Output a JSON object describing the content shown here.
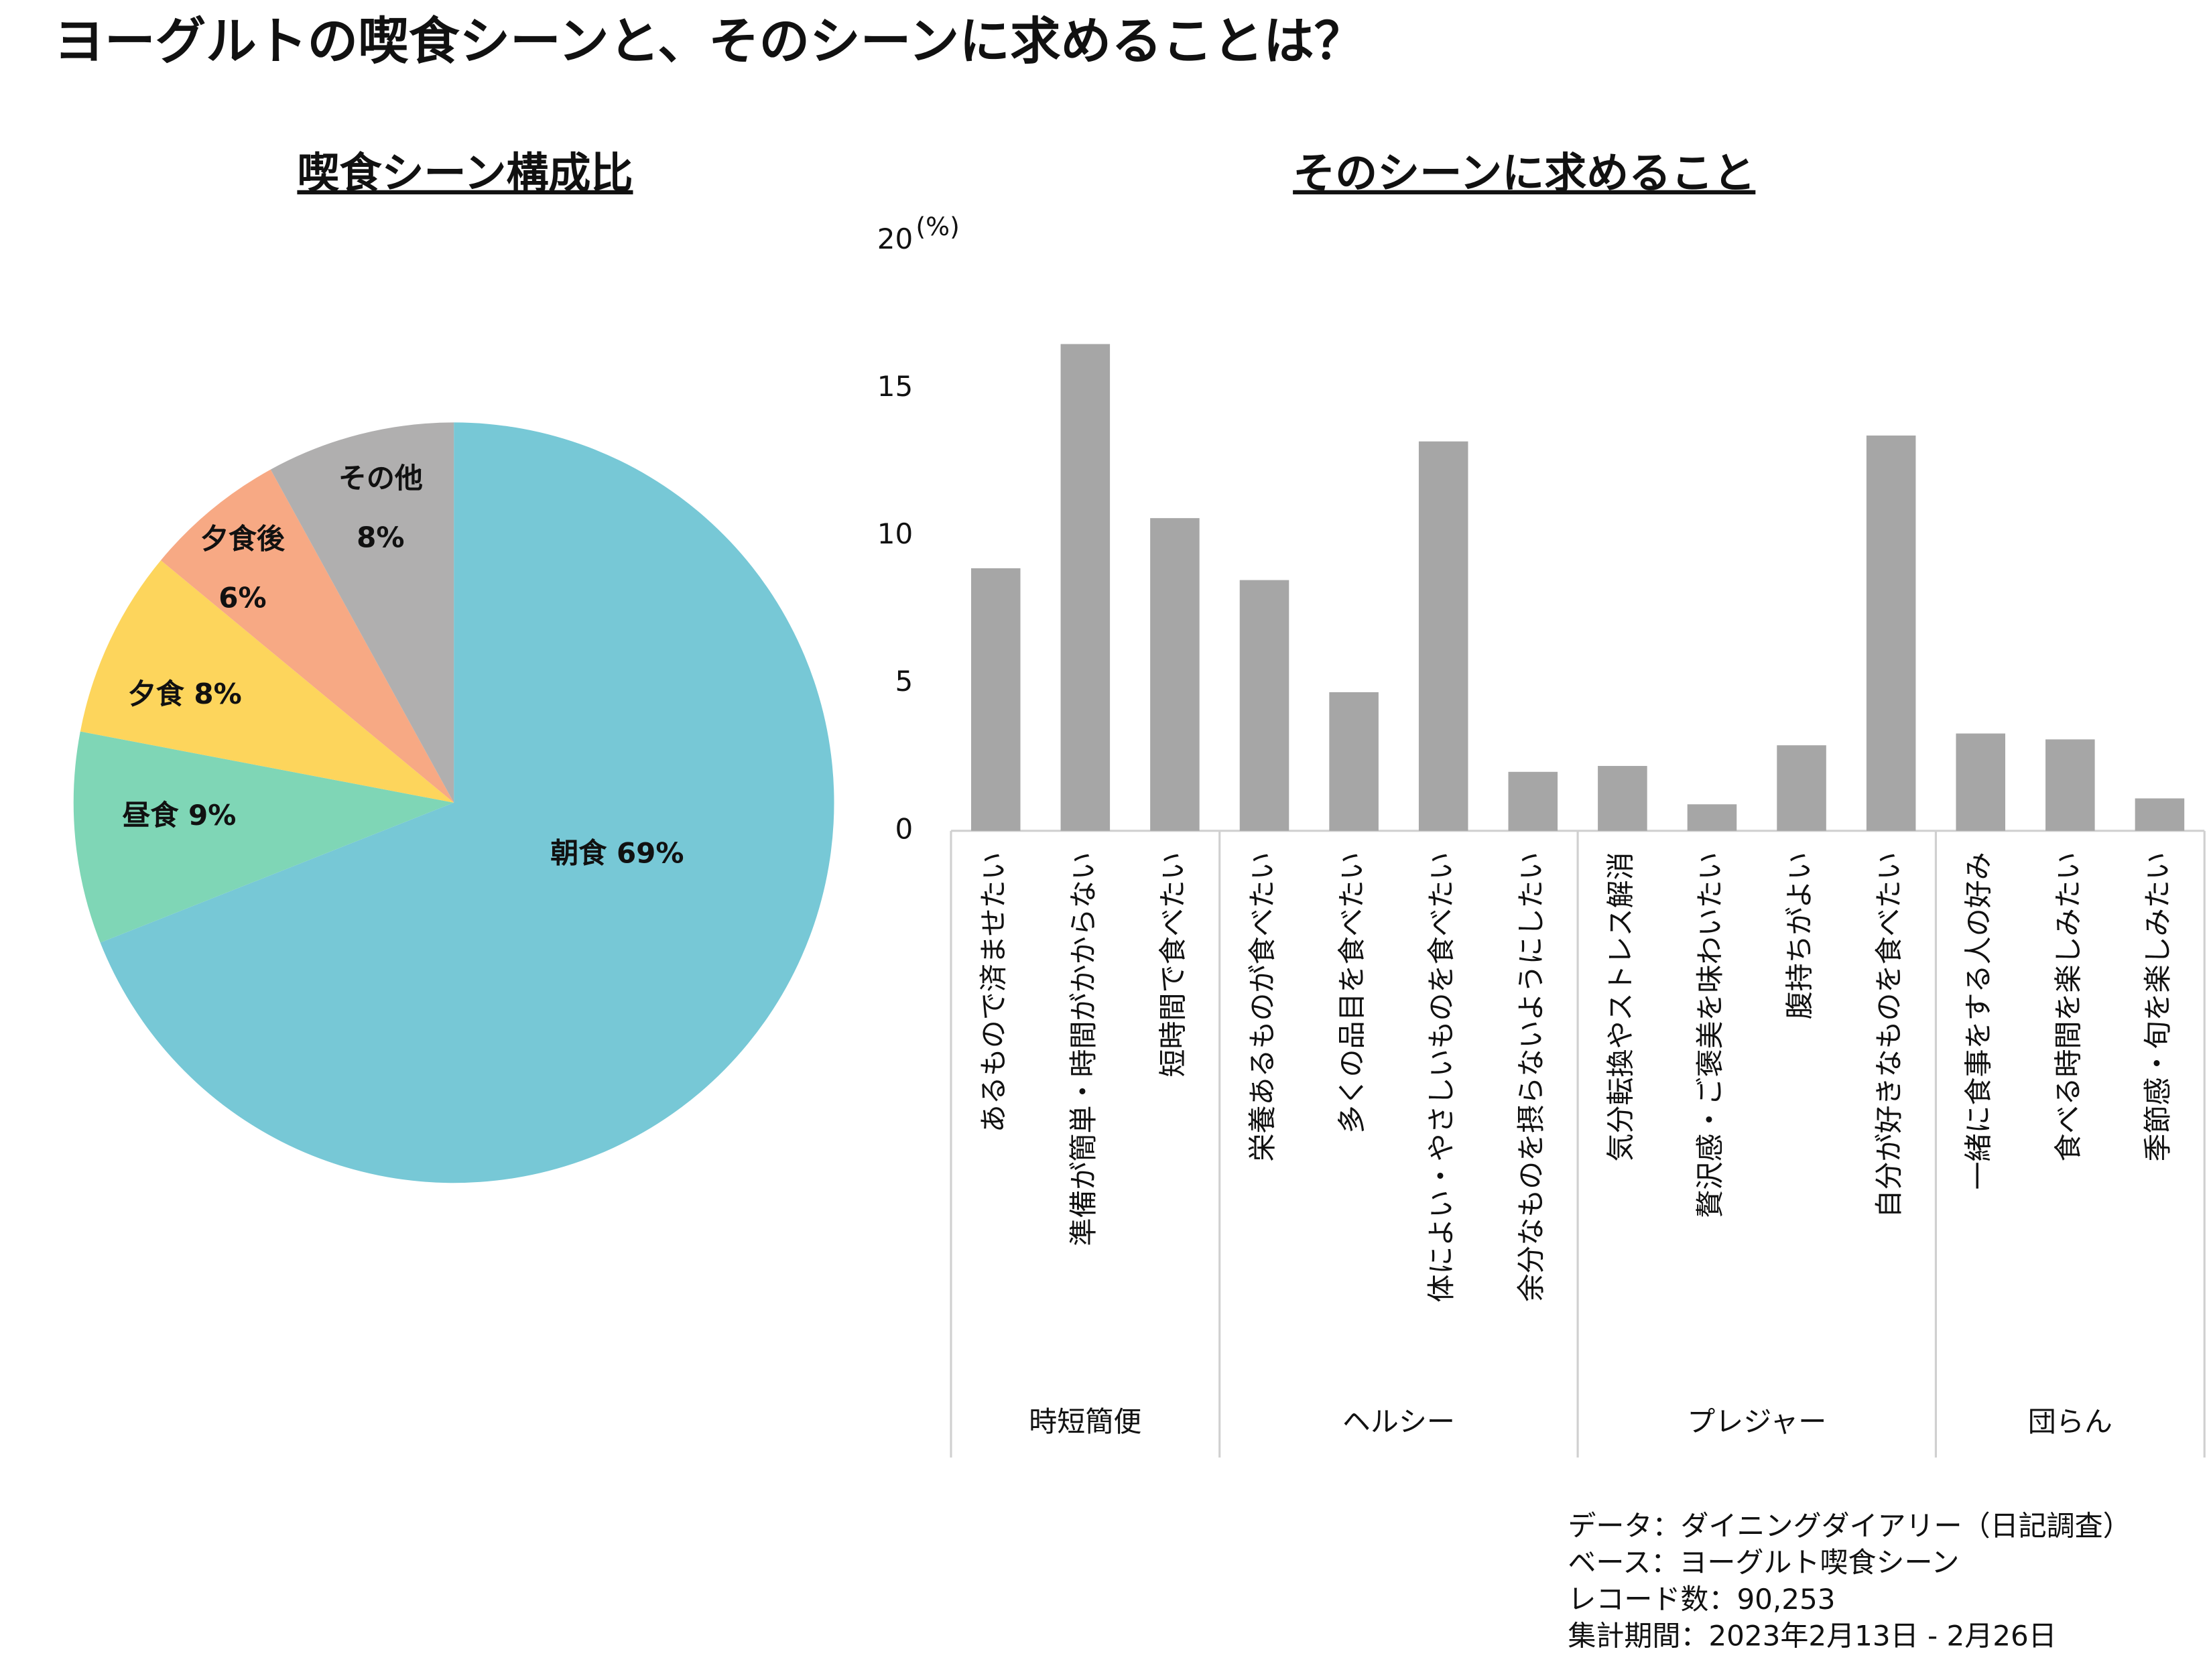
{
  "title": "ヨーグルトの喫食シーンと、そのシーンに求めることは？",
  "notes": [
    "データ：ダイニングダイアリー（日記調査）",
    "ベース：ヨーグルト喫食シーン",
    "レコード数：90,253",
    "集計期間：2023年2月13日 - 2月26日"
  ],
  "chart_data": [
    {
      "type": "pie",
      "title": "喫食シーン構成比",
      "categories": [
        "朝食",
        "昼食",
        "夕食",
        "夕食後",
        "その他"
      ],
      "values": [
        69,
        9,
        8,
        6,
        8
      ],
      "value_labels": [
        "69%",
        "9%",
        "8%",
        "6%",
        "8%"
      ],
      "colors": [
        "#77c8d6",
        "#7fd6b6",
        "#fdd55c",
        "#f7a984",
        "#b0afaf"
      ]
    },
    {
      "type": "bar",
      "title": "そのシーンに求めること",
      "y_unit": "(%)",
      "color": "#a6a6a6",
      "ylim": [
        0,
        20
      ],
      "yticks": [
        0,
        5,
        10,
        15,
        20
      ],
      "grid": false,
      "groups": [
        {
          "name": "時短簡便",
          "categories": [
            "あるもので済ませたい",
            "準備が簡単・時間がかからない",
            "短時間で食べたい"
          ],
          "values": [
            8.9,
            16.5,
            10.6
          ]
        },
        {
          "name": "ヘルシー",
          "categories": [
            "栄養あるものが食べたい",
            "多くの品目を食べたい",
            "体によい・やさしいものを食べたい",
            "余分なものを摂らないようにしたい"
          ],
          "values": [
            8.5,
            4.7,
            13.2,
            2.0
          ]
        },
        {
          "name": "プレジャー",
          "categories": [
            "気分転換やストレス解消",
            "贅沢感・ご褒美を味わいたい",
            "腹持ちがよい",
            "自分が好きなものを食べたい"
          ],
          "values": [
            2.2,
            0.9,
            2.9,
            13.4
          ]
        },
        {
          "name": "団らん",
          "categories": [
            "一緒に食事をする人の好み",
            "食べる時間を楽しみたい",
            "季節感・旬を楽しみたい"
          ],
          "values": [
            3.3,
            3.1,
            1.1
          ]
        }
      ]
    }
  ]
}
